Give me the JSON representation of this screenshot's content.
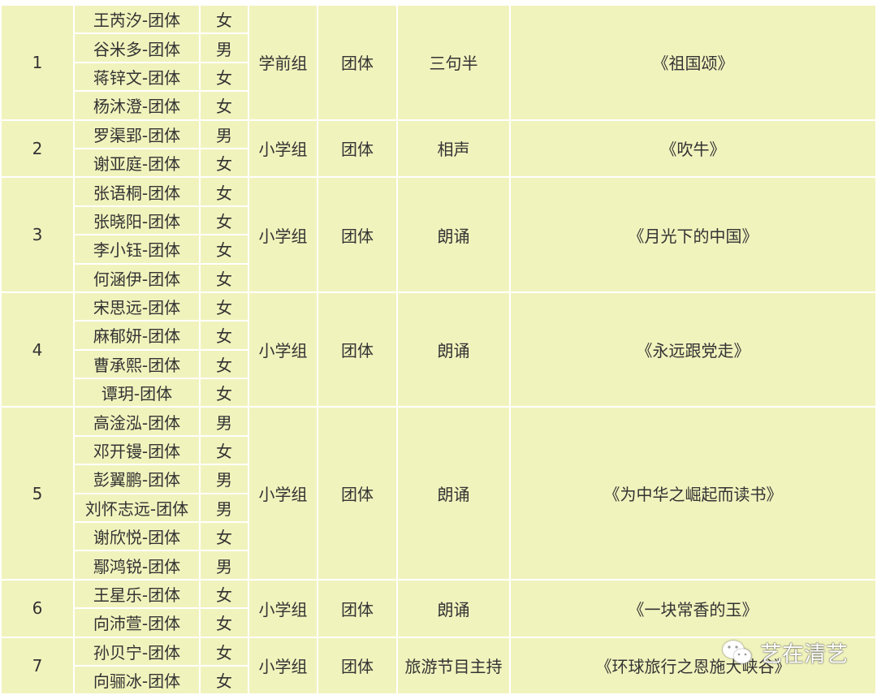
{
  "colors": {
    "cell_bg": "#f1f3bd",
    "border": "#ffffff",
    "text": "#333333"
  },
  "rows": [
    {
      "no": "1",
      "members": [
        [
          "王芮汐-团体",
          "女"
        ],
        [
          "谷米多-团体",
          "男"
        ],
        [
          "蒋锌文-团体",
          "女"
        ],
        [
          "杨沐澄-团体",
          "女"
        ]
      ],
      "group": "学前组",
      "type": "团体",
      "category": "三句半",
      "title": "《祖国颂》"
    },
    {
      "no": "2",
      "members": [
        [
          "罗渠郢-团体",
          "男"
        ],
        [
          "谢亚庭-团体",
          "女"
        ]
      ],
      "group": "小学组",
      "type": "团体",
      "category": "相声",
      "title": "《吹牛》"
    },
    {
      "no": "3",
      "members": [
        [
          "张语桐-团体",
          "女"
        ],
        [
          "张晓阳-团体",
          "女"
        ],
        [
          "李小钰-团体",
          "女"
        ],
        [
          "何涵伊-团体",
          "女"
        ]
      ],
      "group": "小学组",
      "type": "团体",
      "category": "朗诵",
      "title": "《月光下的中国》"
    },
    {
      "no": "4",
      "members": [
        [
          "宋思远-团体",
          "女"
        ],
        [
          "麻郁妍-团体",
          "女"
        ],
        [
          "曹承熙-团体",
          "女"
        ],
        [
          "谭玥-团体",
          "女"
        ]
      ],
      "group": "小学组",
      "type": "团体",
      "category": "朗诵",
      "title": "《永远跟党走》"
    },
    {
      "no": "5",
      "members": [
        [
          "高淦泓-团体",
          "男"
        ],
        [
          "邓开镘-团体",
          "女"
        ],
        [
          "彭翼鹏-团体",
          "男"
        ],
        [
          "刘怀志远-团体",
          "男"
        ],
        [
          "谢欣悦-团体",
          "女"
        ],
        [
          "鄢鸿锐-团体",
          "男"
        ]
      ],
      "group": "小学组",
      "type": "团体",
      "category": "朗诵",
      "title": "《为中华之崛起而读书》"
    },
    {
      "no": "6",
      "members": [
        [
          "王星乐-团体",
          "女"
        ],
        [
          "向沛萱-团体",
          "女"
        ]
      ],
      "group": "小学组",
      "type": "团体",
      "category": "朗诵",
      "title": "《一块常香的玉》"
    },
    {
      "no": "7",
      "members": [
        [
          "孙贝宁-团体",
          "女"
        ],
        [
          "向骊冰-团体",
          "女"
        ]
      ],
      "group": "小学组",
      "type": "团体",
      "category": "旅游节目主持",
      "title": "《环球旅行之恩施大峡谷》"
    }
  ],
  "watermark": {
    "icon": "wechat-icon",
    "text": "艺在清艺"
  }
}
